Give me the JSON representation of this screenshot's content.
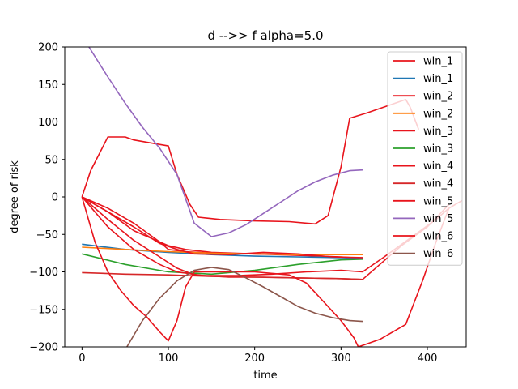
{
  "chart_data": {
    "type": "line",
    "title": "d -->> f  alpha=5.0",
    "xlabel": "time",
    "ylabel": "degree of risk",
    "xlim": [
      -20,
      445
    ],
    "ylim": [
      -200,
      200
    ],
    "xticks": [
      0,
      100,
      200,
      300,
      400
    ],
    "yticks": [
      -200,
      -150,
      -100,
      -50,
      0,
      50,
      100,
      150,
      200
    ],
    "grid": false,
    "legend_position": "top-right",
    "series": [
      {
        "name": "win_1",
        "color": "#e8141c",
        "points": [
          [
            0,
            0
          ],
          [
            30,
            -20
          ],
          [
            60,
            -45
          ],
          [
            90,
            -60
          ],
          [
            100,
            -65
          ],
          [
            120,
            -70
          ],
          [
            150,
            -74
          ],
          [
            200,
            -76
          ],
          [
            250,
            -78
          ],
          [
            300,
            -80
          ],
          [
            325,
            -82
          ]
        ]
      },
      {
        "name": "win_1",
        "color": "#1f77b4",
        "points": [
          [
            0,
            -63
          ],
          [
            50,
            -70
          ],
          [
            100,
            -74
          ],
          [
            150,
            -77
          ],
          [
            200,
            -79
          ],
          [
            250,
            -80
          ],
          [
            300,
            -81
          ],
          [
            325,
            -82
          ]
        ]
      },
      {
        "name": "win_2",
        "color": "#e8141c",
        "points": [
          [
            0,
            0
          ],
          [
            30,
            -15
          ],
          [
            60,
            -35
          ],
          [
            90,
            -60
          ],
          [
            100,
            -70
          ],
          [
            120,
            -73
          ],
          [
            150,
            -75
          ],
          [
            200,
            -76
          ],
          [
            250,
            -77
          ],
          [
            300,
            -77
          ],
          [
            325,
            -77
          ]
        ]
      },
      {
        "name": "win_2",
        "color": "#ff7f0e",
        "points": [
          [
            0,
            -67
          ],
          [
            50,
            -70
          ],
          [
            100,
            -73
          ],
          [
            150,
            -75
          ],
          [
            200,
            -76
          ],
          [
            250,
            -77
          ],
          [
            300,
            -77
          ],
          [
            325,
            -77
          ]
        ]
      },
      {
        "name": "win_3",
        "color": "#e8141c",
        "points": [
          [
            0,
            0
          ],
          [
            30,
            -20
          ],
          [
            60,
            -40
          ],
          [
            90,
            -62
          ],
          [
            110,
            -70
          ],
          [
            130,
            -76
          ],
          [
            170,
            -77
          ],
          [
            210,
            -74
          ],
          [
            250,
            -76
          ],
          [
            290,
            -80
          ],
          [
            325,
            -81
          ]
        ]
      },
      {
        "name": "win_3",
        "color": "#2ca02c",
        "points": [
          [
            0,
            -76
          ],
          [
            50,
            -90
          ],
          [
            100,
            -100
          ],
          [
            150,
            -103
          ],
          [
            200,
            -98
          ],
          [
            250,
            -90
          ],
          [
            300,
            -84
          ],
          [
            325,
            -83
          ]
        ]
      },
      {
        "name": "win_4",
        "color": "#e8141c",
        "points": [
          [
            0,
            0
          ],
          [
            30,
            -30
          ],
          [
            60,
            -58
          ],
          [
            90,
            -80
          ],
          [
            110,
            -95
          ],
          [
            130,
            -104
          ],
          [
            170,
            -107
          ],
          [
            210,
            -107
          ],
          [
            250,
            -108
          ],
          [
            300,
            -109
          ],
          [
            325,
            -110
          ],
          [
            345,
            -90
          ],
          [
            370,
            -65
          ],
          [
            400,
            -40
          ],
          [
            425,
            -10
          ]
        ]
      },
      {
        "name": "win_4",
        "color": "#d62728",
        "points": [
          [
            0,
            -101
          ],
          [
            50,
            -103
          ],
          [
            100,
            -104
          ],
          [
            150,
            -106
          ],
          [
            200,
            -107
          ],
          [
            250,
            -108
          ],
          [
            300,
            -109
          ],
          [
            325,
            -110
          ]
        ]
      },
      {
        "name": "win_5",
        "color": "#e8141c",
        "points": [
          [
            0,
            0
          ],
          [
            30,
            -40
          ],
          [
            60,
            -70
          ],
          [
            90,
            -90
          ],
          [
            110,
            -100
          ],
          [
            140,
            -105
          ],
          [
            180,
            -105
          ],
          [
            220,
            -103
          ],
          [
            260,
            -100
          ],
          [
            300,
            -98
          ],
          [
            325,
            -100
          ],
          [
            350,
            -80
          ],
          [
            380,
            -55
          ],
          [
            410,
            -30
          ],
          [
            425,
            -15
          ]
        ]
      },
      {
        "name": "win_5",
        "color": "#9467bd",
        "points": [
          [
            8,
            200
          ],
          [
            30,
            160
          ],
          [
            50,
            125
          ],
          [
            70,
            93
          ],
          [
            90,
            65
          ],
          [
            110,
            30
          ],
          [
            130,
            -35
          ],
          [
            150,
            -53
          ],
          [
            170,
            -48
          ],
          [
            190,
            -37
          ],
          [
            210,
            -22
          ],
          [
            230,
            -7
          ],
          [
            250,
            8
          ],
          [
            270,
            20
          ],
          [
            290,
            29
          ],
          [
            310,
            35
          ],
          [
            325,
            36
          ]
        ]
      },
      {
        "name": "win_6",
        "color": "#e8141c",
        "points": [
          [
            0,
            0
          ],
          [
            15,
            -60
          ],
          [
            30,
            -100
          ],
          [
            45,
            -125
          ],
          [
            60,
            -145
          ],
          [
            75,
            -160
          ],
          [
            90,
            -180
          ],
          [
            100,
            -192
          ],
          [
            110,
            -165
          ],
          [
            120,
            -120
          ],
          [
            130,
            -100
          ],
          [
            160,
            -100
          ],
          [
            200,
            -100
          ],
          [
            240,
            -104
          ],
          [
            260,
            -115
          ],
          [
            280,
            -140
          ],
          [
            300,
            -165
          ],
          [
            315,
            -188
          ],
          [
            320,
            -200
          ]
        ]
      },
      {
        "name": "win_6",
        "color": "#8c564b",
        "points": [
          [
            52,
            -200
          ],
          [
            70,
            -165
          ],
          [
            90,
            -135
          ],
          [
            110,
            -112
          ],
          [
            130,
            -98
          ],
          [
            150,
            -94
          ],
          [
            170,
            -97
          ],
          [
            190,
            -108
          ],
          [
            210,
            -120
          ],
          [
            230,
            -133
          ],
          [
            250,
            -146
          ],
          [
            270,
            -155
          ],
          [
            290,
            -161
          ],
          [
            310,
            -165
          ],
          [
            325,
            -166
          ]
        ]
      }
    ],
    "extra_lines": [
      {
        "color": "#e8141c",
        "points": [
          [
            0,
            0
          ],
          [
            10,
            35
          ],
          [
            30,
            80
          ],
          [
            50,
            80
          ],
          [
            60,
            76
          ],
          [
            80,
            72
          ],
          [
            100,
            68
          ],
          [
            110,
            30
          ],
          [
            125,
            -10
          ],
          [
            135,
            -27
          ],
          [
            160,
            -30
          ],
          [
            200,
            -32
          ],
          [
            240,
            -33
          ],
          [
            270,
            -36
          ],
          [
            285,
            -25
          ],
          [
            300,
            40
          ],
          [
            310,
            105
          ],
          [
            330,
            112
          ],
          [
            350,
            120
          ],
          [
            375,
            130
          ],
          [
            380,
            120
          ],
          [
            390,
            90
          ]
        ]
      },
      {
        "color": "#e8141c",
        "points": [
          [
            320,
            -200
          ],
          [
            345,
            -190
          ],
          [
            375,
            -170
          ],
          [
            395,
            -110
          ],
          [
            410,
            -60
          ],
          [
            425,
            -15
          ],
          [
            440,
            -5
          ]
        ]
      }
    ]
  }
}
